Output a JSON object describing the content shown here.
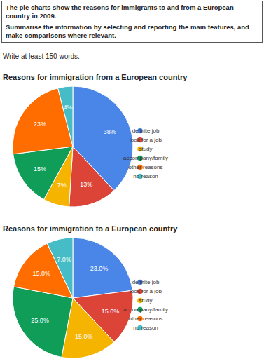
{
  "prompt": {
    "box": [
      "The pie charts show the reasons for immigrants to and from a European country in 2009.",
      "Summarise the information by selecting and reporting the main features, and make comparisons where relevant."
    ],
    "instruction": "Write at least 150 words."
  },
  "chart_data": [
    {
      "type": "pie",
      "title": "Reasons for immigration from a European country",
      "categories": [
        "definite job",
        "look for a job",
        "study",
        "accompany/family",
        "other reasons",
        "no reason"
      ],
      "values": [
        38,
        13,
        7,
        15,
        23,
        4
      ],
      "value_labels": [
        "38%",
        "13%",
        "7%",
        "15%",
        "23%",
        "4%"
      ],
      "colors": [
        "#4a86e8",
        "#db4437",
        "#f4b400",
        "#0f9d58",
        "#ff6d01",
        "#46bdc6"
      ],
      "data_labels": true,
      "legend": "right"
    },
    {
      "type": "pie",
      "title": "Reasons for immigration to a European country",
      "categories": [
        "definite job",
        "look for a job",
        "study",
        "accompany/family",
        "other reasons",
        "no reason"
      ],
      "values": [
        23,
        15,
        15,
        25,
        15,
        7
      ],
      "value_labels": [
        "23.0%",
        "15.0%",
        "15.0%",
        "25.0%",
        "15.0%",
        "7.0%"
      ],
      "colors": [
        "#4a86e8",
        "#db4437",
        "#f4b400",
        "#0f9d58",
        "#ff6d01",
        "#46bdc6"
      ],
      "data_labels": true,
      "legend": "right"
    }
  ]
}
